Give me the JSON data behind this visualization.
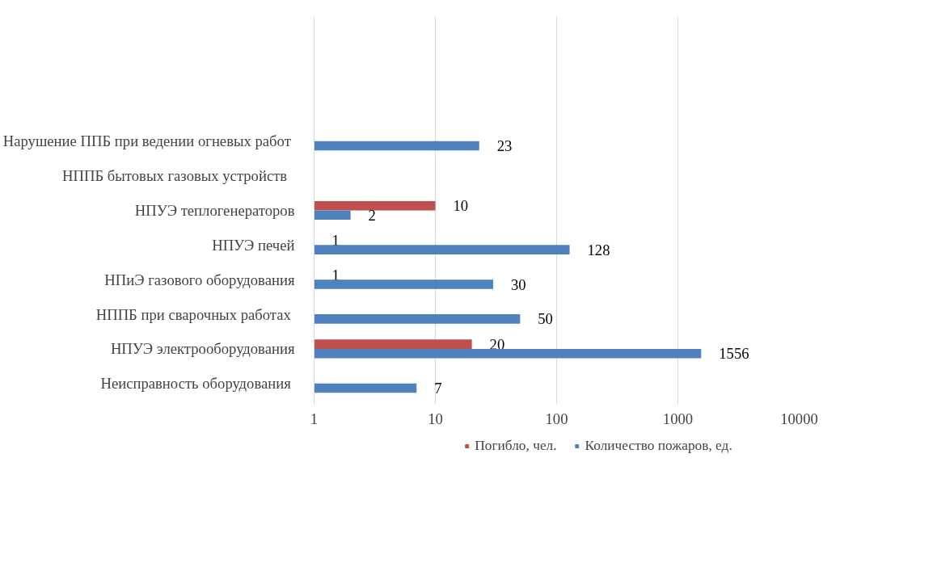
{
  "chart_data": {
    "type": "bar",
    "orientation": "horizontal",
    "log": "x",
    "categories": [
      "Нарушение ППБ при ведении огневых  работ",
      "НППБ бытовых  газовых  устройств",
      "НПУЭ теплогенераторов",
      "НПУЭ печей",
      "НПиЭ газового оборудования",
      "НППБ при сварочных  работах",
      "НПУЭ электрооборудования",
      "Неисправность  оборудования"
    ],
    "series": [
      {
        "name": "Погибло, чел.",
        "color": "#c0504d",
        "values": [
          null,
          null,
          10,
          1,
          1,
          null,
          20,
          null
        ]
      },
      {
        "name": "Количество пожаров, ед.",
        "color": "#4f81bd",
        "values": [
          23,
          null,
          2,
          128,
          30,
          50,
          1556,
          7
        ]
      }
    ],
    "xlim": [
      1,
      10000
    ],
    "xticks": [
      1,
      10,
      100,
      1000,
      10000
    ],
    "grid": "x",
    "legend": "bottom",
    "data_labels": true
  }
}
